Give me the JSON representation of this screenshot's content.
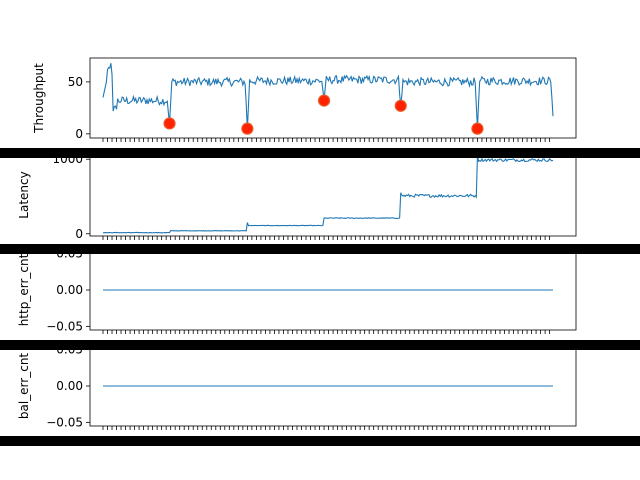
{
  "colors": {
    "line": "#1f77b4",
    "marker": "#ff2200",
    "marker_edge": "#e85a28",
    "band": "#000000",
    "spine": "#000000"
  },
  "chart_data": [
    {
      "type": "line",
      "ylabel": "Throughput",
      "ylim": [
        -4,
        73
      ],
      "yticks": [
        0,
        50
      ],
      "ytick_labels": [
        "0",
        "50"
      ],
      "n_points": 400,
      "series": [
        {
          "values_description_only": false
        }
      ],
      "segments": [
        {
          "x_start": 0,
          "x_end": 60,
          "level": 32
        },
        {
          "x_start": 60,
          "x_end": 128,
          "level": 50
        },
        {
          "x_start": 128,
          "x_end": 196,
          "level": 51
        },
        {
          "x_start": 196,
          "x_end": 264,
          "level": 52
        },
        {
          "x_start": 264,
          "x_end": 332,
          "level": 50
        },
        {
          "x_start": 332,
          "x_end": 400,
          "level": 51
        }
      ],
      "dips": [
        {
          "x": 59,
          "y": 10
        },
        {
          "x": 128,
          "y": 5
        },
        {
          "x": 196,
          "y": 32
        },
        {
          "x": 264,
          "y": 27
        },
        {
          "x": 332,
          "y": 5
        }
      ],
      "initial_peak": {
        "x": 6,
        "y": 68
      },
      "final_value": 17,
      "anomalies": [
        {
          "x": 59,
          "y": 10
        },
        {
          "x": 128,
          "y": 5
        },
        {
          "x": 196,
          "y": 32
        },
        {
          "x": 264,
          "y": 27
        },
        {
          "x": 332,
          "y": 5
        }
      ]
    },
    {
      "type": "line",
      "ylabel": "Latency",
      "ylim": [
        -30,
        1070
      ],
      "yticks": [
        0,
        1000
      ],
      "ytick_labels": [
        "0",
        "1000"
      ],
      "n_points": 400,
      "segments": [
        {
          "x_start": 0,
          "x_end": 60,
          "level": 15
        },
        {
          "x_start": 60,
          "x_end": 128,
          "level": 40
        },
        {
          "x_start": 128,
          "x_end": 196,
          "level": 110
        },
        {
          "x_start": 196,
          "x_end": 264,
          "level": 210
        },
        {
          "x_start": 264,
          "x_end": 332,
          "level": 510
        },
        {
          "x_start": 332,
          "x_end": 400,
          "level": 990
        }
      ],
      "spikes": [
        {
          "x": 128,
          "y": 150
        },
        {
          "x": 264,
          "y": 550
        },
        {
          "x": 332,
          "y": 1050
        }
      ]
    },
    {
      "type": "line",
      "ylabel": "http_err_cnt",
      "ylim": [
        -0.055,
        0.055
      ],
      "yticks": [
        -0.05,
        0.0,
        0.05
      ],
      "ytick_labels": [
        "−0.05",
        "0.00",
        "0.05"
      ],
      "n_points": 400,
      "constant_value": 0
    },
    {
      "type": "line",
      "ylabel": "bal_err_cnt",
      "ylim": [
        -0.055,
        0.055
      ],
      "yticks": [
        -0.05,
        0.0,
        0.05
      ],
      "ytick_labels": [
        "−0.05",
        "0.00",
        "0.05"
      ],
      "n_points": 400,
      "constant_value": 0
    }
  ]
}
